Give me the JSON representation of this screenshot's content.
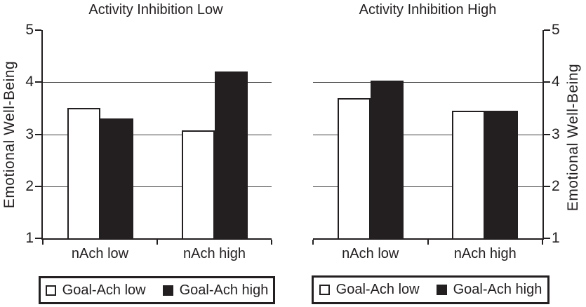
{
  "figure": {
    "background": "#ffffff",
    "ink_color": "#231f20",
    "grid_color": "#3d3d3d",
    "bar_fill_low": "#ffffff",
    "bar_fill_high": "#231f20"
  },
  "chart_data": [
    {
      "type": "bar",
      "title": "Activity Inhibition Low",
      "ylabel": "Emotional Well-Being",
      "xlabel": "",
      "yaxis_side": "left",
      "ylim": [
        1,
        5
      ],
      "yticks": [
        1,
        2,
        3,
        4,
        5
      ],
      "gridlines_at": [
        2,
        3,
        4
      ],
      "grid": "horizontal",
      "categories": [
        "nAch low",
        "nAch high"
      ],
      "series": [
        {
          "name": "Goal-Ach low",
          "fill": "white",
          "values": [
            3.5,
            3.07
          ]
        },
        {
          "name": "Goal-Ach high",
          "fill": "black",
          "values": [
            3.3,
            4.2
          ]
        }
      ],
      "legend_position": "bottom",
      "legend_entries": [
        "Goal-Ach low",
        "Goal-Ach high"
      ]
    },
    {
      "type": "bar",
      "title": "Activity Inhibition High",
      "ylabel": "Emotional Well-Being",
      "xlabel": "",
      "yaxis_side": "right",
      "ylim": [
        1,
        5
      ],
      "yticks": [
        1,
        2,
        3,
        4,
        5
      ],
      "gridlines_at": [
        2,
        3,
        4
      ],
      "grid": "horizontal",
      "categories": [
        "nAch low",
        "nAch high"
      ],
      "series": [
        {
          "name": "Goal-Ach low",
          "fill": "white",
          "values": [
            3.7,
            3.45
          ]
        },
        {
          "name": "Goal-Ach high",
          "fill": "black",
          "values": [
            4.03,
            3.45
          ]
        }
      ],
      "legend_position": "bottom",
      "legend_entries": [
        "Goal-Ach low",
        "Goal-Ach high"
      ]
    }
  ]
}
